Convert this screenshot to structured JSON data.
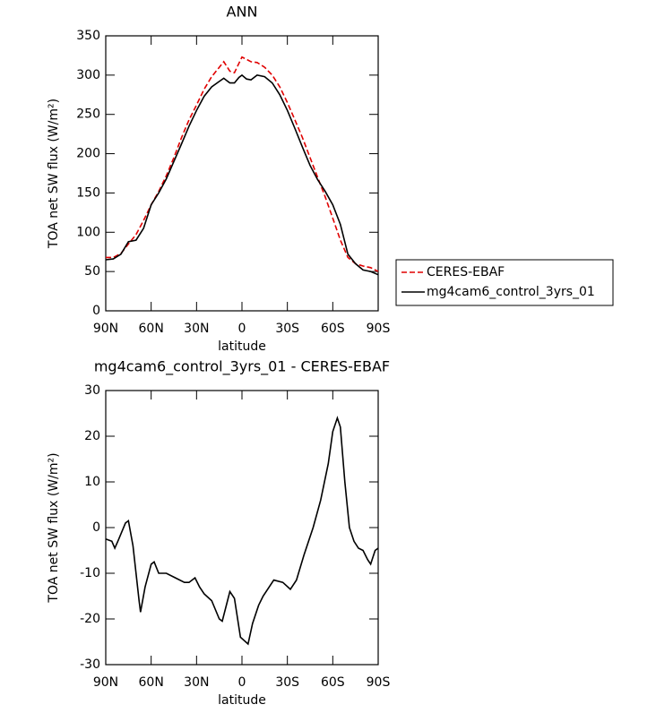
{
  "chart_data": [
    {
      "type": "line",
      "title": "ANN",
      "xlabel": "latitude",
      "ylabel": "TOA net SW flux (W/m²)",
      "x": [
        90,
        85,
        80,
        75,
        70,
        65,
        60,
        55,
        50,
        45,
        40,
        35,
        30,
        25,
        20,
        15,
        12,
        8,
        5,
        2,
        0,
        -3,
        -6,
        -10,
        -15,
        -20,
        -25,
        -30,
        -35,
        -40,
        -45,
        -50,
        -55,
        -60,
        -65,
        -70,
        -75,
        -80,
        -85,
        -90
      ],
      "series": [
        {
          "name": "CERES-EBAF",
          "color": "#e00000",
          "style": "dashed",
          "values": [
            68,
            68,
            73,
            85,
            97,
            115,
            135,
            152,
            172,
            195,
            220,
            243,
            262,
            282,
            298,
            310,
            317,
            305,
            303,
            315,
            323,
            320,
            317,
            316,
            310,
            300,
            285,
            265,
            243,
            220,
            195,
            170,
            145,
            118,
            90,
            68,
            60,
            57,
            55,
            50
          ]
        },
        {
          "name": "mg4cam6_control_3yrs_01",
          "color": "#000000",
          "style": "solid",
          "values": [
            65,
            66,
            72,
            88,
            90,
            105,
            135,
            150,
            168,
            190,
            212,
            235,
            255,
            273,
            285,
            292,
            296,
            290,
            290,
            297,
            300,
            295,
            294,
            300,
            298,
            290,
            275,
            255,
            232,
            208,
            185,
            167,
            152,
            135,
            110,
            72,
            60,
            52,
            50,
            46
          ]
        }
      ],
      "xlim": [
        90,
        -90
      ],
      "xticks": [
        {
          "value": 90,
          "label": "90N"
        },
        {
          "value": 60,
          "label": "60N"
        },
        {
          "value": 30,
          "label": "30N"
        },
        0,
        {
          "value": -30,
          "label": "30S"
        },
        {
          "value": -60,
          "label": "60S"
        },
        {
          "value": -90,
          "label": "90S"
        }
      ],
      "ylim": [
        0,
        350
      ],
      "yticks": [
        0,
        50,
        100,
        150,
        200,
        250,
        300,
        350
      ],
      "legend": "right"
    },
    {
      "type": "line",
      "title": "mg4cam6_control_3yrs_01 - CERES-EBAF",
      "xlabel": "latitude",
      "ylabel": "TOA net SW flux (W/m²)",
      "x": [
        90,
        86,
        84,
        82,
        77,
        75,
        72,
        70,
        68,
        67,
        64,
        60,
        58,
        55,
        50,
        44,
        38,
        35,
        31,
        28,
        25,
        20,
        15,
        13,
        8,
        5,
        1,
        -4,
        -7,
        -11,
        -14,
        -21,
        -27,
        -32,
        -36,
        -41,
        -47,
        -52,
        -57,
        -60,
        -63,
        -65,
        -68,
        -71,
        -74,
        -77,
        -80,
        -83,
        -85,
        -88,
        -90
      ],
      "values": [
        -2.5,
        -3,
        -4.5,
        -3,
        1,
        1.5,
        -4,
        -10,
        -16,
        -18.5,
        -13,
        -8,
        -7.5,
        -10,
        -10,
        -11,
        -12,
        -12,
        -11,
        -13,
        -14.5,
        -16,
        -20,
        -20.5,
        -14,
        -15.5,
        -24,
        -25.5,
        -21,
        -17,
        -15,
        -11.5,
        -12,
        -13.5,
        -11.5,
        -6,
        0,
        6,
        14,
        21,
        24,
        22,
        10,
        0,
        -3,
        -4.5,
        -5,
        -7,
        -8,
        -5,
        -4.5
      ],
      "color": "#000000",
      "xlim": [
        90,
        -90
      ],
      "xticks": [
        {
          "value": 90,
          "label": "90N"
        },
        {
          "value": 60,
          "label": "60N"
        },
        {
          "value": 30,
          "label": "30N"
        },
        0,
        {
          "value": -30,
          "label": "30S"
        },
        {
          "value": -60,
          "label": "60S"
        },
        {
          "value": -90,
          "label": "90S"
        }
      ],
      "ylim": [
        -30,
        30
      ],
      "yticks": [
        -30,
        -20,
        -10,
        0,
        10,
        20,
        30
      ]
    }
  ]
}
